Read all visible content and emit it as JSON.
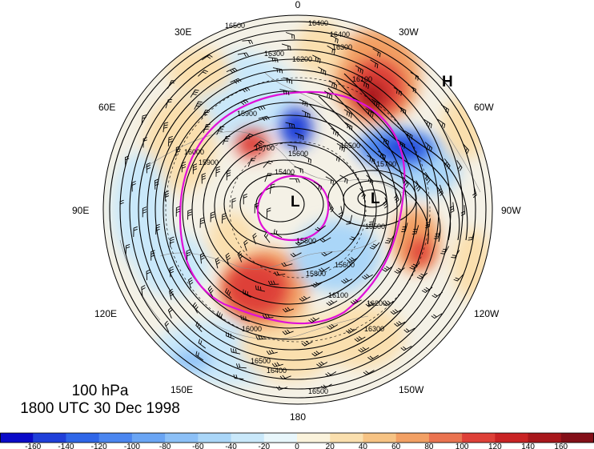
{
  "title": {
    "level": "100 hPa",
    "time": "1800 UTC 30 Dec 1998"
  },
  "longitude_labels": [
    "0",
    "30W",
    "60W",
    "90W",
    "120W",
    "150W",
    "180",
    "150E",
    "120E",
    "90E",
    "60E",
    "30E"
  ],
  "pressure_centers": [
    "H",
    "L",
    "L"
  ],
  "contour_labels": [
    "16500",
    "16400",
    "16400",
    "16300",
    "16300",
    "16200",
    "16100",
    "16000",
    "15900",
    "15800",
    "15700",
    "15600",
    "15500",
    "15400",
    "15500",
    "15600",
    "15700",
    "15800",
    "15900",
    "16000",
    "16100",
    "16200",
    "16300",
    "16400",
    "16500",
    "16500"
  ],
  "colorbar": {
    "ticks": [
      "-160",
      "-140",
      "-120",
      "-100",
      "-80",
      "-60",
      "-40",
      "-20",
      "0",
      "20",
      "40",
      "60",
      "80",
      "100",
      "120",
      "140",
      "160"
    ],
    "colors": [
      "#0a0ac8",
      "#1f3fd9",
      "#2f66e8",
      "#4b86f0",
      "#6aa5f4",
      "#8cc0f7",
      "#aad6f8",
      "#c9e8fa",
      "#e8f6fb",
      "#fbf3dc",
      "#fadfae",
      "#f6c384",
      "#f2a064",
      "#ea7350",
      "#de4038",
      "#c92324",
      "#a8171c",
      "#830f18"
    ]
  },
  "anomaly_colors": {
    "strong_positive": "#d92b2b",
    "positive": "#f2a064",
    "weak_positive": "#fadfae",
    "neutral": "#f4f1e6",
    "weak_negative": "#c9e8fa",
    "negative": "#6aa5f4",
    "strong_negative": "#1f3fd9"
  },
  "magenta_contour_color": "#e010d8"
}
